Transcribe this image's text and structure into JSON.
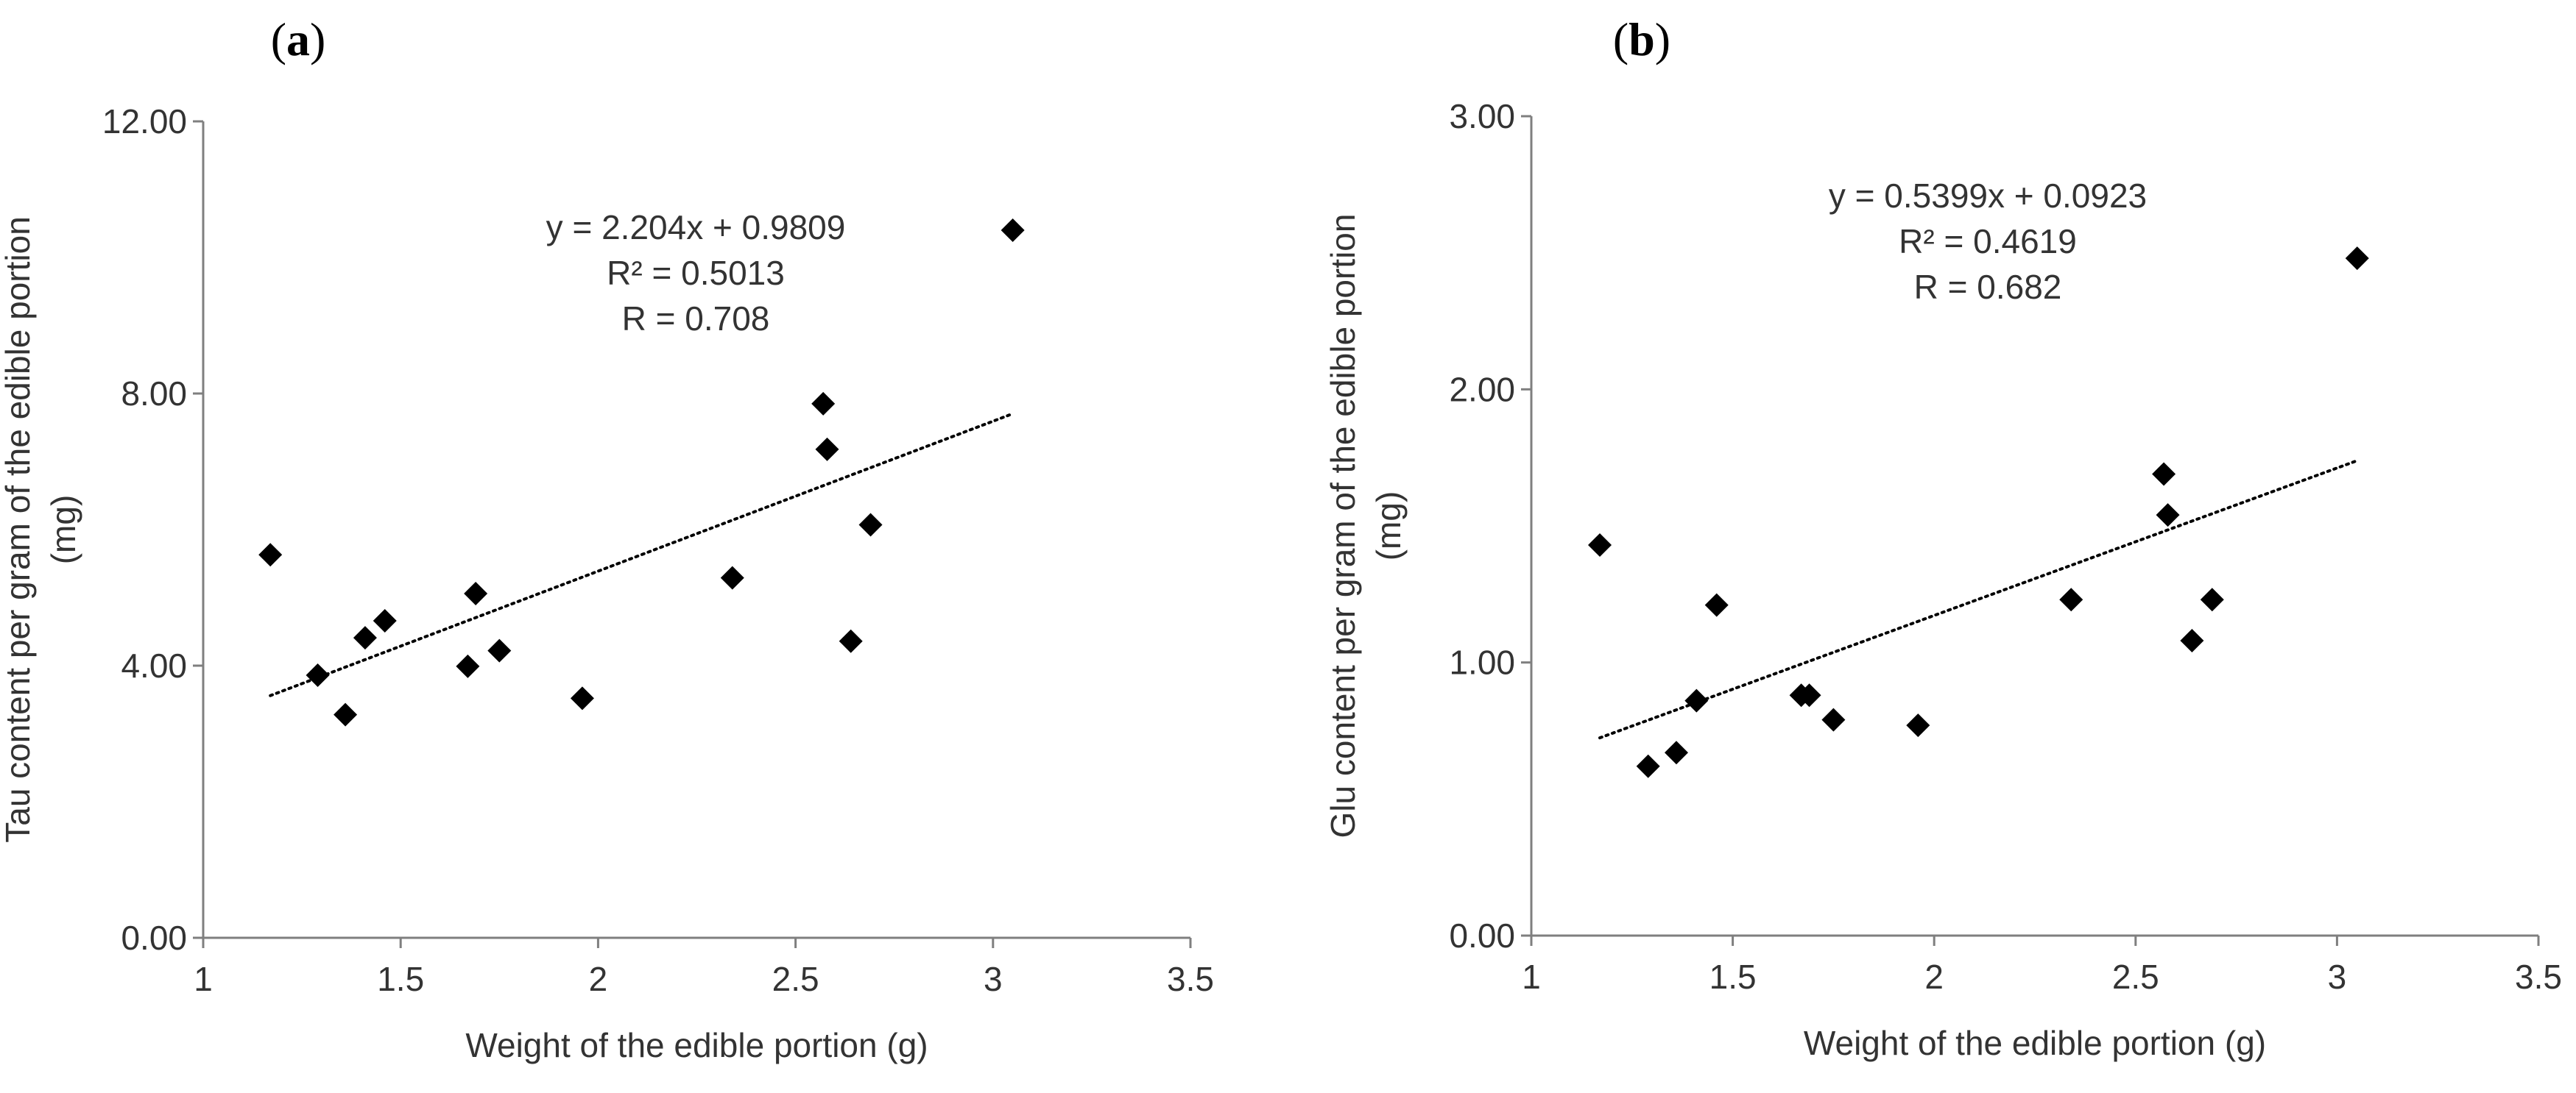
{
  "chart_data": [
    {
      "type": "scatter",
      "panel_label": "a",
      "xlabel": "Weight of the edible portion (g)",
      "ylabel_line1": "Tau content per gram of the edible portion",
      "ylabel_line2": "(mg)",
      "xlim": [
        1,
        3.5
      ],
      "ylim": [
        0,
        12
      ],
      "x_ticks": [
        "1",
        "1.5",
        "2",
        "2.5",
        "3",
        "3.5"
      ],
      "y_ticks": [
        "0.00",
        "4.00",
        "8.00",
        "12.00"
      ],
      "grid": false,
      "marker": "diamond",
      "marker_color": "#000000",
      "points": [
        {
          "x": 1.17,
          "y": 5.63
        },
        {
          "x": 1.29,
          "y": 3.86
        },
        {
          "x": 1.36,
          "y": 3.28
        },
        {
          "x": 1.41,
          "y": 4.41
        },
        {
          "x": 1.46,
          "y": 4.66
        },
        {
          "x": 1.67,
          "y": 3.99
        },
        {
          "x": 1.69,
          "y": 5.06
        },
        {
          "x": 1.75,
          "y": 4.22
        },
        {
          "x": 1.96,
          "y": 3.52
        },
        {
          "x": 2.34,
          "y": 5.29
        },
        {
          "x": 2.57,
          "y": 7.85
        },
        {
          "x": 2.58,
          "y": 7.18
        },
        {
          "x": 2.64,
          "y": 4.36
        },
        {
          "x": 2.69,
          "y": 6.07
        },
        {
          "x": 3.05,
          "y": 10.4
        }
      ],
      "trendline": {
        "slope": 2.204,
        "intercept": 0.9809,
        "x_range": [
          1.17,
          3.05
        ],
        "style": "dotted"
      },
      "annotations": [
        "y = 2.204x + 0.9809",
        "R² = 0.5013",
        "R = 0.708"
      ]
    },
    {
      "type": "scatter",
      "panel_label": "b",
      "xlabel": "Weight of the edible portion (g)",
      "ylabel_line1": "Glu content  per gram of the edible portion",
      "ylabel_line2": "(mg)",
      "xlim": [
        1,
        3.5
      ],
      "ylim": [
        0,
        3
      ],
      "x_ticks": [
        "1",
        "1.5",
        "2",
        "2.5",
        "3",
        "3.5"
      ],
      "y_ticks": [
        "0.00",
        "1.00",
        "2.00",
        "3.00"
      ],
      "grid": false,
      "marker": "diamond",
      "marker_color": "#000000",
      "points": [
        {
          "x": 1.17,
          "y": 1.43
        },
        {
          "x": 1.29,
          "y": 0.62
        },
        {
          "x": 1.36,
          "y": 0.67
        },
        {
          "x": 1.41,
          "y": 0.86
        },
        {
          "x": 1.46,
          "y": 1.21
        },
        {
          "x": 1.67,
          "y": 0.88
        },
        {
          "x": 1.69,
          "y": 0.88
        },
        {
          "x": 1.75,
          "y": 0.79
        },
        {
          "x": 1.96,
          "y": 0.77
        },
        {
          "x": 2.34,
          "y": 1.23
        },
        {
          "x": 2.57,
          "y": 1.69
        },
        {
          "x": 2.58,
          "y": 1.54
        },
        {
          "x": 2.64,
          "y": 1.08
        },
        {
          "x": 2.69,
          "y": 1.23
        },
        {
          "x": 3.05,
          "y": 2.48
        }
      ],
      "trendline": {
        "slope": 0.5399,
        "intercept": 0.0923,
        "x_range": [
          1.17,
          3.05
        ],
        "style": "dotted"
      },
      "annotations": [
        "y = 0.5399x + 0.0923",
        "R² = 0.4619",
        "R = 0.682"
      ]
    }
  ]
}
